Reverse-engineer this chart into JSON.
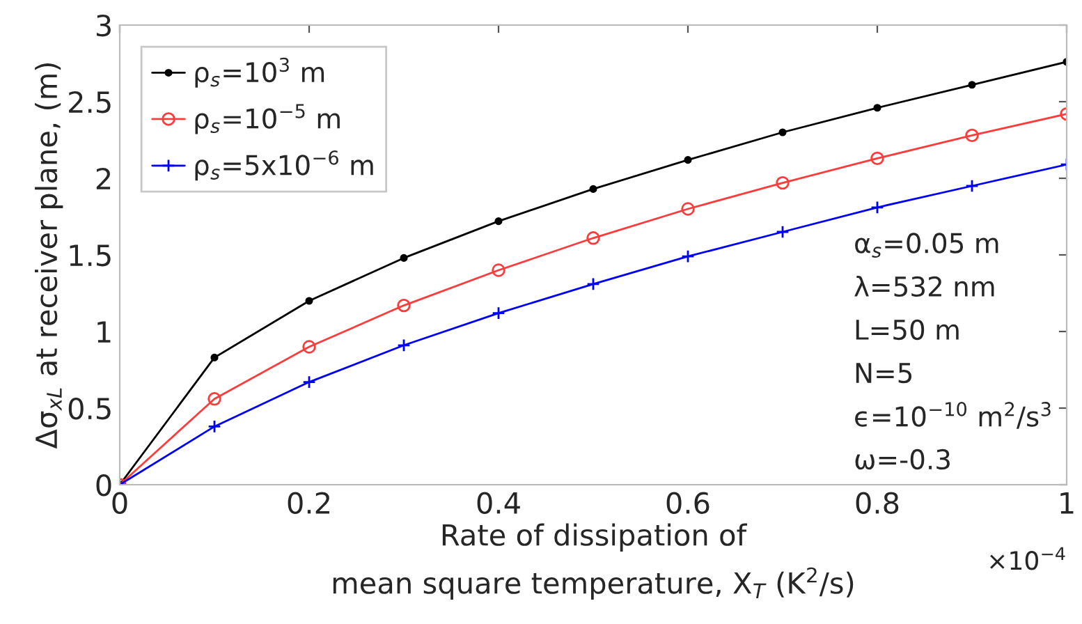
{
  "chart_data": {
    "type": "line",
    "xlabel": "Rate of dissipation of\nmean square temperature, X$_{T}$ (K$^{2}$/s)",
    "ylabel": "Δσ$_{xL}$ at receiver plane, (m)",
    "x": [
      0,
      0.1,
      0.2,
      0.3,
      0.4,
      0.5,
      0.6,
      0.7,
      0.8,
      0.9,
      1
    ],
    "series": [
      {
        "name": "ρ$_{s}$=10$^{3}$ m",
        "color": "#000000",
        "marker": "circle",
        "values": [
          0,
          0.83,
          1.2,
          1.48,
          1.72,
          1.93,
          2.12,
          2.3,
          2.46,
          2.61,
          2.76
        ]
      },
      {
        "name": "ρ$_{s}$=10$^{−5}$ m",
        "color": "#ff3b3b",
        "marker": "circle",
        "values": [
          0,
          0.56,
          0.9,
          1.17,
          1.4,
          1.61,
          1.8,
          1.97,
          2.13,
          2.28,
          2.42
        ]
      },
      {
        "name": "ρ$_{s}$=5x10$^{−6}$ m",
        "color": "#0000ff",
        "marker": "cross",
        "values": [
          0,
          0.38,
          0.67,
          0.91,
          1.12,
          1.31,
          1.49,
          1.65,
          1.81,
          1.95,
          2.09
        ]
      }
    ],
    "xlim": [
      0,
      1
    ],
    "xticks": [
      0,
      0.2,
      0.4,
      0.6,
      0.8,
      1
    ],
    "ylim": [
      0,
      3
    ],
    "yticks": [
      0,
      0.5,
      1,
      1.5,
      2,
      2.5,
      3
    ],
    "grid": false,
    "legend": "top left",
    "line_style": "solid",
    "annotations": [
      "×10$^{−4}$",
      "α$_{s}$=0.05 m",
      "λ=532 nm",
      "L=50 m",
      "N=5",
      "ϵ=10$^{−10}$ m$^{2}$/s$^{3}$",
      "ω=-0.3"
    ]
  }
}
